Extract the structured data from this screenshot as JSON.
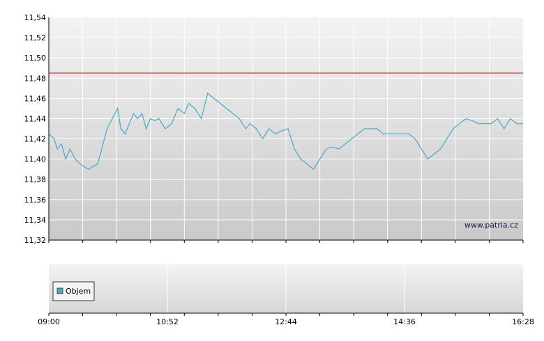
{
  "watermark": "www.patria.cz",
  "legend": {
    "label": "Objem"
  },
  "colors": {
    "price_line": "#4aa8c8",
    "reference_line": "#c01010",
    "legend_swatch": "#4aa8c8"
  },
  "chart_data": [
    {
      "type": "line",
      "y_tick_labels": [
        "11,54",
        "11,52",
        "11,50",
        "11,48",
        "11,46",
        "11,44",
        "11,42",
        "11,40",
        "11,38",
        "11,36",
        "11,34",
        "11,32"
      ],
      "ylim": [
        11.32,
        11.54
      ],
      "x_tick_labels": [
        "09:00",
        "10:52",
        "12:44",
        "14:36",
        "16:28"
      ],
      "xlim": [
        "09:00",
        "16:28"
      ],
      "reference_line": 11.485,
      "grid": true,
      "series": [
        {
          "x": [
            "09:00",
            "09:05",
            "09:08",
            "09:12",
            "09:16",
            "09:20",
            "09:25",
            "09:30",
            "09:34",
            "09:38",
            "09:42",
            "09:46",
            "09:50",
            "09:55",
            "10:00",
            "10:05",
            "10:08",
            "10:12",
            "10:16",
            "10:20",
            "10:24",
            "10:28",
            "10:32",
            "10:36",
            "10:40",
            "10:44",
            "10:50",
            "10:56",
            "11:02",
            "11:08",
            "11:12",
            "11:18",
            "11:24",
            "11:30",
            "11:36",
            "11:42",
            "11:48",
            "11:54",
            "12:00",
            "12:06",
            "12:10",
            "12:16",
            "12:22",
            "12:28",
            "12:34",
            "12:40",
            "12:46",
            "12:52",
            "12:58",
            "13:04",
            "13:10",
            "13:16",
            "13:22",
            "13:28",
            "13:34",
            "13:40",
            "13:46",
            "13:52",
            "13:58",
            "14:04",
            "14:10",
            "14:16",
            "14:22",
            "14:28",
            "14:34",
            "14:40",
            "14:46",
            "14:52",
            "14:58",
            "15:04",
            "15:10",
            "15:16",
            "15:22",
            "15:28",
            "15:34",
            "15:40",
            "15:46",
            "15:52",
            "15:58",
            "16:04",
            "16:10",
            "16:16",
            "16:22",
            "16:28"
          ],
          "y": [
            11.425,
            11.42,
            11.41,
            11.415,
            11.4,
            11.41,
            11.4,
            11.395,
            11.392,
            11.39,
            11.393,
            11.395,
            11.41,
            11.43,
            11.44,
            11.45,
            11.43,
            11.425,
            11.435,
            11.445,
            11.44,
            11.445,
            11.43,
            11.44,
            11.438,
            11.44,
            11.43,
            11.435,
            11.45,
            11.445,
            11.455,
            11.45,
            11.44,
            11.465,
            11.46,
            11.455,
            11.45,
            11.445,
            11.44,
            11.43,
            11.435,
            11.43,
            11.42,
            11.43,
            11.425,
            11.428,
            11.43,
            11.41,
            11.4,
            11.395,
            11.39,
            11.4,
            11.41,
            11.412,
            11.41,
            11.415,
            11.42,
            11.425,
            11.43,
            11.43,
            11.43,
            11.425,
            11.425,
            11.425,
            11.425,
            11.425,
            11.42,
            11.41,
            11.4,
            11.405,
            11.41,
            11.42,
            11.43,
            11.435,
            11.44,
            11.438,
            11.435,
            11.435,
            11.435,
            11.44,
            11.43,
            11.44,
            11.435,
            11.435
          ]
        }
      ]
    },
    {
      "type": "bar",
      "legend": "Objem",
      "x_tick_labels": [
        "09:00",
        "10:52",
        "12:44",
        "14:36",
        "16:28"
      ],
      "values": []
    }
  ]
}
